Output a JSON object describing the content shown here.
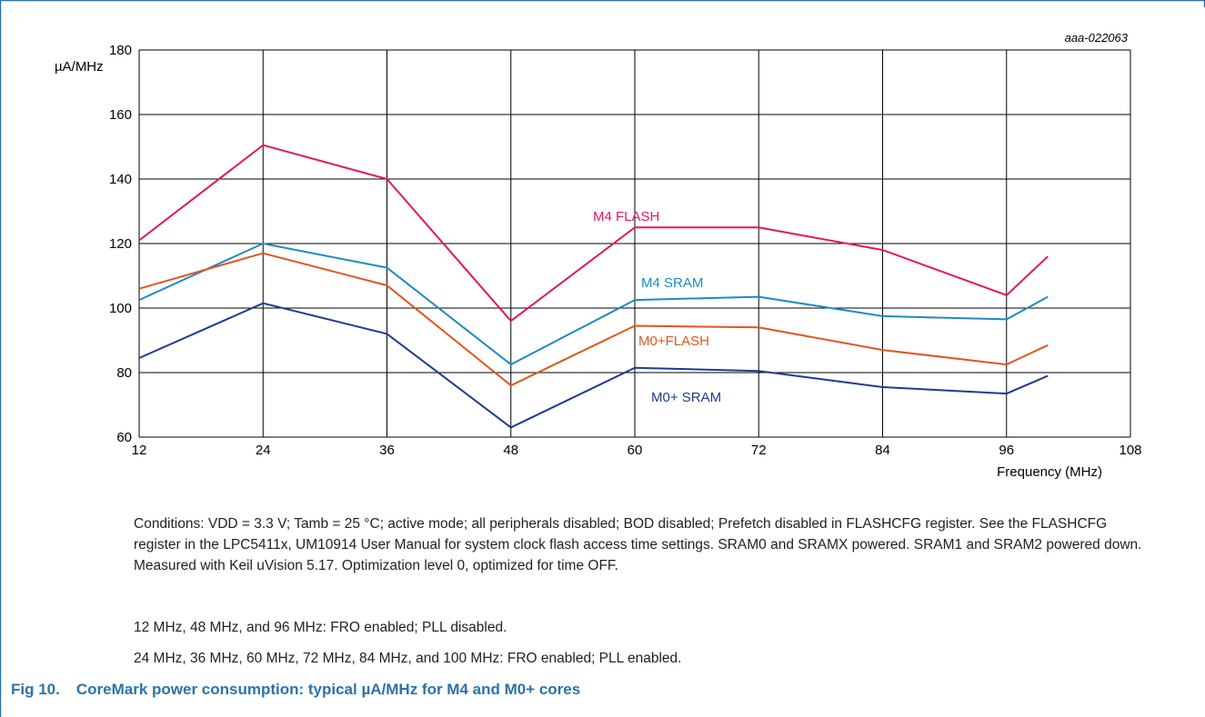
{
  "chart_data": {
    "type": "line",
    "doc_id": "aaa-022063",
    "ylabel": "µA/MHz",
    "xlabel": "Frequency (MHz)",
    "xlim": [
      12,
      108
    ],
    "ylim": [
      60,
      180
    ],
    "x_ticks": [
      12,
      24,
      36,
      48,
      60,
      72,
      84,
      96,
      108
    ],
    "y_ticks": [
      60,
      80,
      100,
      120,
      140,
      160,
      180
    ],
    "grid": true,
    "x": [
      12,
      24,
      36,
      48,
      60,
      72,
      84,
      96,
      100
    ],
    "series": [
      {
        "name": "M4 FLASH",
        "color": "#e0195a",
        "values": [
          121,
          150.5,
          140,
          96,
          125,
          125,
          118,
          104,
          116
        ]
      },
      {
        "name": "M4 SRAM",
        "color": "#1e8ac2",
        "values": [
          102.5,
          120,
          112.5,
          82.5,
          102.5,
          103.5,
          97.5,
          96.5,
          103.5
        ]
      },
      {
        "name": "M0+FLASH",
        "color": "#e0561f",
        "values": [
          106,
          117,
          107,
          76,
          94.5,
          94,
          87,
          82.5,
          88.5
        ]
      },
      {
        "name": "M0+ SRAM",
        "color": "#1d3c8f",
        "values": [
          84.5,
          101.5,
          92,
          63,
          81.5,
          80.5,
          75.5,
          73.5,
          79
        ]
      }
    ]
  },
  "notes": {
    "conditions": "Conditions: VDD = 3.3 V; Tamb = 25 °C; active mode; all peripherals disabled; BOD disabled; Prefetch disabled in FLASHCFG register. See the FLASHCFG register in the LPC5411x, UM10914 User Manual for system clock flash access time settings. SRAM0 and SRAMX powered. SRAM1 and SRAM2 powered down. Measured with Keil uVision 5.17. Optimization level 0, optimized for time OFF.",
    "fro_only": "12 MHz, 48 MHz, and 96 MHz: FRO enabled; PLL disabled.",
    "fro_pll": "24 MHz, 36 MHz, 60 MHz, 72 MHz, 84 MHz, and 100 MHz: FRO enabled; PLL enabled."
  },
  "caption": {
    "number": "Fig 10.",
    "text": "CoreMark power consumption: typical µA/MHz for M4 and M0+ cores"
  },
  "colors": {
    "frame": "#2a73a8",
    "grid": "#000000",
    "caption": "#2a73a8"
  }
}
